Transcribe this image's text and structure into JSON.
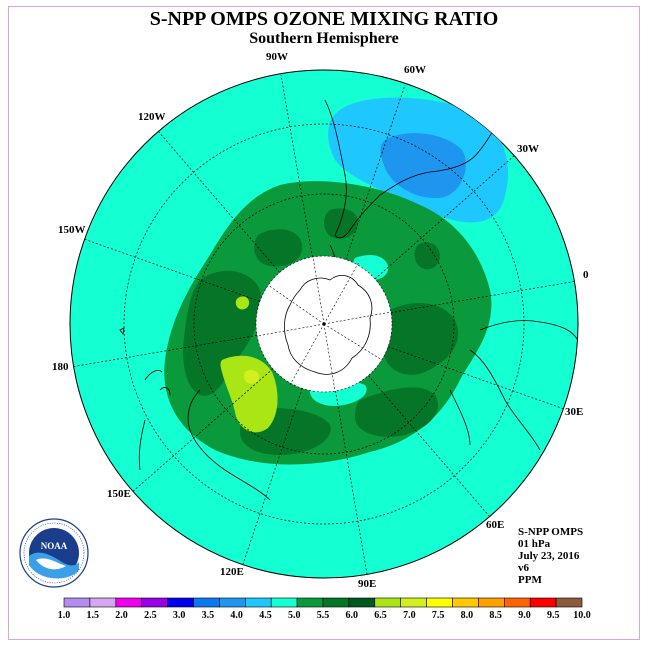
{
  "title": "S-NPP OMPS OZONE MIXING RATIO",
  "subtitle": "Southern Hemisphere",
  "longitude_labels": {
    "w90": "90W",
    "w60": "60W",
    "w30": "30W",
    "zero": "0",
    "e30": "30E",
    "e60": "60E",
    "e90": "90E",
    "e120": "120E",
    "e150": "150E",
    "lon180": "180",
    "w150": "150W",
    "w120": "120W"
  },
  "info": {
    "instrument": "S-NPP OMPS",
    "pressure_level": "01 hPa",
    "date": "July 23, 2016",
    "version": "v6",
    "units": "PPM"
  },
  "logo": {
    "text": "NOAA",
    "ring_text": "NATIONAL OCEANIC AND ATMOSPHERIC ADMINISTRATION · U.S. DEPARTMENT OF COMMERCE"
  },
  "colorbar": {
    "labels": [
      "1.0",
      "1.5",
      "2.0",
      "2.5",
      "3.0",
      "3.5",
      "4.0",
      "4.5",
      "5.0",
      "5.5",
      "6.0",
      "6.5",
      "7.0",
      "7.5",
      "8.0",
      "8.5",
      "9.0",
      "9.5",
      "10.0"
    ],
    "colors": [
      "#b48cf0",
      "#d8a6f0",
      "#ee00ee",
      "#9a00e8",
      "#0000ee",
      "#0a78f0",
      "#1e96f0",
      "#1ec8ff",
      "#14ffd2",
      "#0a9a3c",
      "#057528",
      "#00591e",
      "#aae614",
      "#d2f01e",
      "#ffff00",
      "#ffc800",
      "#ffa000",
      "#ff6400",
      "#ff0000",
      "#8c5a3c"
    ]
  },
  "map": {
    "background_color": "#14ffd2",
    "colors": {
      "band_5_5_6_0": "#0a9a3c",
      "band_6_0_6_5": "#057528",
      "band_6_5_7_0": "#aae614",
      "band_7_0_7_5": "#d2f01e",
      "band_4_0_4_5": "#1ec8ff",
      "band_3_5_4_0": "#1e96f0",
      "polar_night": "#ffffff"
    }
  }
}
